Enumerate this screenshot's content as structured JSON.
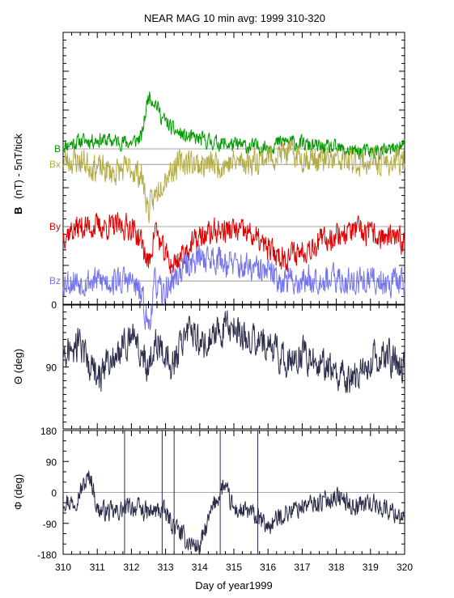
{
  "chart_data": [
    {
      "type": "line",
      "title": "NEAR MAG 10 min avg: 1999 310-320",
      "ylabel_bold": "B",
      "ylabel_rest": "(nT) - 5nT/tick",
      "x_range": [
        310,
        320
      ],
      "y_tick_labels": [],
      "grid": false,
      "series": [
        {
          "name": "B",
          "color": "#009900",
          "baseline_tick": 20,
          "points": [
            [
              310,
              0.4
            ],
            [
              310.5,
              1
            ],
            [
              311,
              1.2
            ],
            [
              311.5,
              1
            ],
            [
              312,
              0.8
            ],
            [
              312.3,
              1.5
            ],
            [
              312.5,
              7
            ],
            [
              312.7,
              6
            ],
            [
              312.9,
              4
            ],
            [
              313.2,
              2.5
            ],
            [
              313.6,
              1.5
            ],
            [
              314,
              1.2
            ],
            [
              314.5,
              0.8
            ],
            [
              315,
              0.5
            ],
            [
              315.5,
              0.3
            ],
            [
              316,
              0.3
            ],
            [
              316.5,
              1
            ],
            [
              317,
              0.6
            ],
            [
              317.5,
              0.2
            ],
            [
              318,
              0
            ],
            [
              318.5,
              -0.3
            ],
            [
              319,
              -0.4
            ],
            [
              319.5,
              -0.3
            ],
            [
              320,
              0.5
            ]
          ]
        },
        {
          "name": "Bx",
          "color": "#b3ac45",
          "baseline_tick": 18,
          "points": [
            [
              310,
              0.5
            ],
            [
              310.5,
              0.5
            ],
            [
              311,
              -0.5
            ],
            [
              311.5,
              -1
            ],
            [
              312,
              -0.5
            ],
            [
              312.3,
              -1.5
            ],
            [
              312.5,
              -6
            ],
            [
              312.7,
              -4
            ],
            [
              312.9,
              -2
            ],
            [
              313.2,
              -0.5
            ],
            [
              313.6,
              0.5
            ],
            [
              314,
              0
            ],
            [
              314.5,
              0
            ],
            [
              315,
              0.2
            ],
            [
              315.5,
              0.5
            ],
            [
              316,
              1
            ],
            [
              316.5,
              1.5
            ],
            [
              317,
              1
            ],
            [
              317.5,
              0.5
            ],
            [
              318,
              0.5
            ],
            [
              318.5,
              0.3
            ],
            [
              319,
              0.3
            ],
            [
              319.5,
              0.2
            ],
            [
              320,
              0.4
            ]
          ]
        },
        {
          "name": "By",
          "color": "#e00000",
          "baseline_tick": 10,
          "points": [
            [
              310,
              -1
            ],
            [
              310.5,
              0
            ],
            [
              311,
              0
            ],
            [
              311.5,
              0
            ],
            [
              312,
              0
            ],
            [
              312.3,
              -2
            ],
            [
              312.5,
              -5
            ],
            [
              312.7,
              0
            ],
            [
              312.9,
              -3
            ],
            [
              313.2,
              -5
            ],
            [
              313.6,
              -3
            ],
            [
              314,
              -1.5
            ],
            [
              314.5,
              -0.5
            ],
            [
              315,
              -0.5
            ],
            [
              315.5,
              -1
            ],
            [
              316,
              -3
            ],
            [
              316.5,
              -4
            ],
            [
              317,
              -3
            ],
            [
              317.5,
              -2
            ],
            [
              318,
              -1
            ],
            [
              318.5,
              -0.5
            ],
            [
              319,
              -1
            ],
            [
              319.5,
              -1.5
            ],
            [
              320,
              -2
            ]
          ]
        },
        {
          "name": "Bz",
          "color": "#7373f0",
          "baseline_tick": 3,
          "points": [
            [
              310,
              0
            ],
            [
              310.5,
              0
            ],
            [
              311,
              0
            ],
            [
              311.5,
              0
            ],
            [
              312,
              0
            ],
            [
              312.3,
              -2
            ],
            [
              312.5,
              -6
            ],
            [
              312.7,
              0
            ],
            [
              312.9,
              -2
            ],
            [
              313.2,
              0
            ],
            [
              313.6,
              2
            ],
            [
              314,
              3
            ],
            [
              314.5,
              3
            ],
            [
              315,
              2
            ],
            [
              315.5,
              1.5
            ],
            [
              316,
              1
            ],
            [
              316.5,
              0
            ],
            [
              317,
              0
            ],
            [
              317.5,
              0.5
            ],
            [
              318,
              0
            ],
            [
              318.5,
              0
            ],
            [
              319,
              0
            ],
            [
              319.5,
              0
            ],
            [
              320,
              0
            ]
          ]
        }
      ]
    },
    {
      "type": "line",
      "ylabel": "Θ (deg)",
      "x_range": [
        310,
        320
      ],
      "ylim": [
        0,
        180
      ],
      "y_inverted": true,
      "y_tick_labels": [
        "0",
        "90"
      ],
      "series": [
        {
          "color": "#2b2b4a",
          "points": [
            [
              310,
              70
            ],
            [
              310.5,
              55
            ],
            [
              311,
              110
            ],
            [
              311.5,
              75
            ],
            [
              312,
              45
            ],
            [
              312.3,
              65
            ],
            [
              312.5,
              100
            ],
            [
              312.7,
              50
            ],
            [
              312.9,
              70
            ],
            [
              313.2,
              90
            ],
            [
              313.6,
              35
            ],
            [
              314,
              60
            ],
            [
              314.5,
              40
            ],
            [
              315,
              30
            ],
            [
              315.5,
              50
            ],
            [
              316,
              60
            ],
            [
              316.5,
              80
            ],
            [
              317,
              70
            ],
            [
              317.5,
              85
            ],
            [
              318,
              100
            ],
            [
              318.5,
              110
            ],
            [
              319,
              80
            ],
            [
              319.5,
              70
            ],
            [
              320,
              95
            ]
          ]
        }
      ]
    },
    {
      "type": "line",
      "ylabel": "Φ (deg)",
      "xlabel": "Day of year1999",
      "x_range": [
        310,
        320
      ],
      "x_tick_labels": [
        "310",
        "311",
        "312",
        "313",
        "314",
        "315",
        "316",
        "317",
        "318",
        "319",
        "320"
      ],
      "ylim": [
        -180,
        180
      ],
      "y_tick_labels": [
        "180",
        "90",
        "0",
        "-90",
        "-180"
      ],
      "series": [
        {
          "color": "#2b2b4a",
          "points": [
            [
              310,
              -20
            ],
            [
              310.3,
              -30
            ],
            [
              310.6,
              20
            ],
            [
              310.8,
              50
            ],
            [
              311,
              -50
            ],
            [
              311.5,
              -60
            ],
            [
              312,
              -40
            ],
            [
              312.5,
              -60
            ],
            [
              312.9,
              -50
            ],
            [
              313.2,
              -90
            ],
            [
              313.6,
              -140
            ],
            [
              314,
              -160
            ],
            [
              314.4,
              -40
            ],
            [
              314.7,
              20
            ],
            [
              315,
              -50
            ],
            [
              315.5,
              -60
            ],
            [
              316,
              -100
            ],
            [
              316.5,
              -60
            ],
            [
              317,
              -40
            ],
            [
              317.5,
              -30
            ],
            [
              318,
              -10
            ],
            [
              318.5,
              -40
            ],
            [
              319,
              -30
            ],
            [
              319.5,
              -50
            ],
            [
              320,
              -70
            ]
          ]
        }
      ]
    }
  ]
}
